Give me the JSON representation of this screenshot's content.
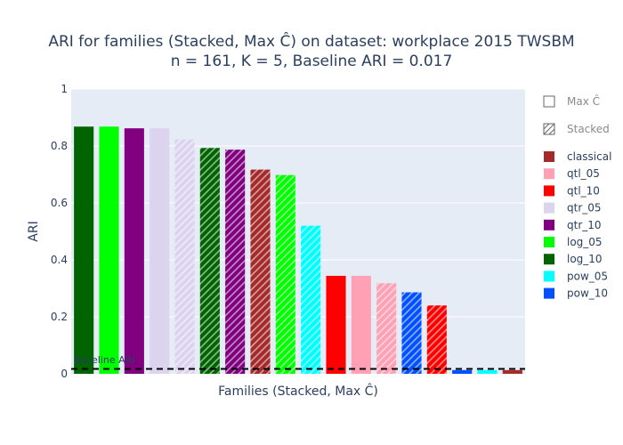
{
  "chart_data": {
    "type": "bar",
    "title_line1": "ARI for families (Stacked, Max Ĉ) on dataset: workplace 2015 TWSBM",
    "title_line2": "n = 161, K = 5, Baseline ARI = 0.017",
    "xlabel": "Families (Stacked, Max Ĉ)",
    "ylabel": "ARI",
    "ylim": [
      0,
      1
    ],
    "yticks": [
      "0",
      "0.2",
      "0.4",
      "0.6",
      "0.8",
      "1"
    ],
    "ytick_values": [
      0,
      0.2,
      0.4,
      0.6,
      0.8,
      1
    ],
    "baseline": {
      "value": 0.017,
      "label": "Baseline ARI"
    },
    "bars": [
      {
        "family": "log_10",
        "method": "Max Ĉ",
        "value": 0.868
      },
      {
        "family": "log_05",
        "method": "Max Ĉ",
        "value": 0.868
      },
      {
        "family": "qtr_10",
        "method": "Max Ĉ",
        "value": 0.862
      },
      {
        "family": "qtr_05",
        "method": "Max Ĉ",
        "value": 0.862
      },
      {
        "family": "qtr_05",
        "method": "Stacked",
        "value": 0.823
      },
      {
        "family": "log_10",
        "method": "Stacked",
        "value": 0.793
      },
      {
        "family": "qtr_10",
        "method": "Stacked",
        "value": 0.787
      },
      {
        "family": "classical",
        "method": "Stacked",
        "value": 0.717
      },
      {
        "family": "log_05",
        "method": "Stacked",
        "value": 0.698
      },
      {
        "family": "pow_05",
        "method": "Stacked",
        "value": 0.52
      },
      {
        "family": "qtl_10",
        "method": "Max Ĉ",
        "value": 0.344
      },
      {
        "family": "qtl_05",
        "method": "Max Ĉ",
        "value": 0.344
      },
      {
        "family": "qtl_05",
        "method": "Stacked",
        "value": 0.318
      },
      {
        "family": "pow_10",
        "method": "Stacked",
        "value": 0.286
      },
      {
        "family": "qtl_10",
        "method": "Stacked",
        "value": 0.24
      },
      {
        "family": "pow_10",
        "method": "Max Ĉ",
        "value": 0.013
      },
      {
        "family": "pow_05",
        "method": "Max Ĉ",
        "value": 0.013
      },
      {
        "family": "classical",
        "method": "Max Ĉ",
        "value": 0.013
      }
    ],
    "legend": {
      "placement": "right",
      "methods": [
        {
          "name": "Max Ĉ",
          "pattern": "solid"
        },
        {
          "name": "Stacked",
          "pattern": "hatch"
        }
      ],
      "families": [
        {
          "name": "classical",
          "color": "#a52a2a"
        },
        {
          "name": "qtl_05",
          "color": "#ffa0b4"
        },
        {
          "name": "qtl_10",
          "color": "#ff0000"
        },
        {
          "name": "qtr_05",
          "color": "#dcd3ee"
        },
        {
          "name": "qtr_10",
          "color": "#800080"
        },
        {
          "name": "log_05",
          "color": "#00ff00"
        },
        {
          "name": "log_10",
          "color": "#006400"
        },
        {
          "name": "pow_05",
          "color": "#00ffff"
        },
        {
          "name": "pow_10",
          "color": "#0050ff"
        }
      ]
    },
    "grid": true,
    "background": "#e5ecf6"
  }
}
